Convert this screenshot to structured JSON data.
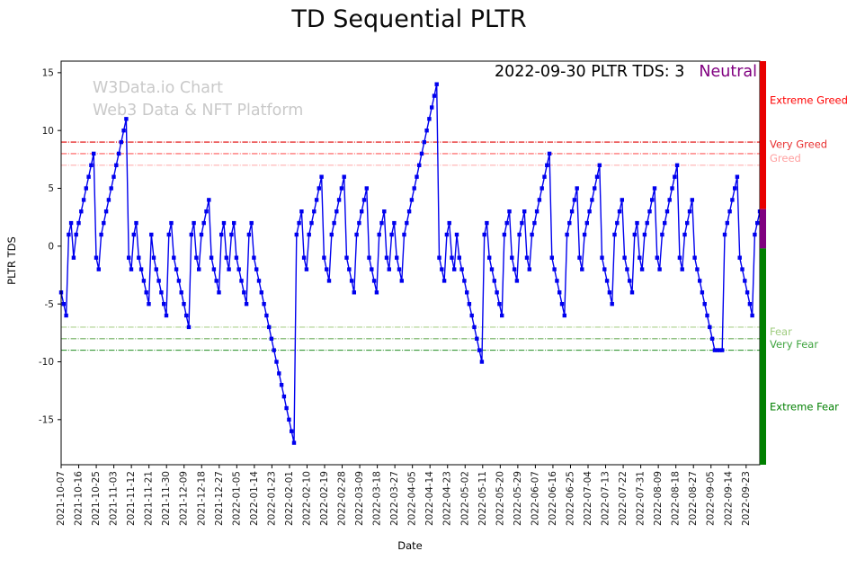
{
  "page": {
    "title": "TD Sequential PLTR"
  },
  "watermark": {
    "line1": "W3Data.io Chart",
    "line2": "Web3 Data & NFT Platform"
  },
  "annotation": {
    "text": "2022-09-30 PLTR TDS: 3",
    "sentiment": "Neutral",
    "sentiment_color": "#800080"
  },
  "chart_data": {
    "type": "line",
    "title": "TD Sequential PLTR",
    "xlabel": "Date",
    "ylabel": "PLTR TDS",
    "ylim": [
      -18.9,
      16.0
    ],
    "yticks": [
      -15,
      -10,
      -5,
      0,
      5,
      10,
      15
    ],
    "grid": false,
    "x_span_days": 358,
    "x_tick_step_days": 9,
    "x_tick_labels": [
      "2021-10-07",
      "2021-10-16",
      "2021-10-25",
      "2021-11-03",
      "2021-11-12",
      "2021-11-21",
      "2021-11-30",
      "2021-12-09",
      "2021-12-18",
      "2021-12-27",
      "2022-01-05",
      "2022-01-14",
      "2022-01-23",
      "2022-02-01",
      "2022-02-10",
      "2022-02-19",
      "2022-02-28",
      "2022-03-09",
      "2022-03-18",
      "2022-03-27",
      "2022-04-05",
      "2022-04-14",
      "2022-04-23",
      "2022-05-02",
      "2022-05-11",
      "2022-05-20",
      "2022-05-29",
      "2022-06-07",
      "2022-06-16",
      "2022-06-25",
      "2022-07-04",
      "2022-07-13",
      "2022-07-22",
      "2022-07-31",
      "2022-08-09",
      "2022-08-18",
      "2022-08-27",
      "2022-09-05",
      "2022-09-14",
      "2022-09-23"
    ],
    "series": [
      {
        "name": "PLTR TDS",
        "color": "#0000ee",
        "marker": "square",
        "values": [
          -4,
          -5,
          -6,
          1,
          2,
          -1,
          1,
          2,
          3,
          4,
          5,
          6,
          7,
          8,
          -1,
          -2,
          1,
          2,
          3,
          4,
          5,
          6,
          7,
          8,
          9,
          10,
          11,
          -1,
          -2,
          1,
          2,
          -1,
          -2,
          -3,
          -4,
          -5,
          1,
          -1,
          -2,
          -3,
          -4,
          -5,
          -6,
          1,
          2,
          -1,
          -2,
          -3,
          -4,
          -5,
          -6,
          -7,
          1,
          2,
          -1,
          -2,
          1,
          2,
          3,
          4,
          -1,
          -2,
          -3,
          -4,
          1,
          2,
          -1,
          -2,
          1,
          2,
          -1,
          -2,
          -3,
          -4,
          -5,
          1,
          2,
          -1,
          -2,
          -3,
          -4,
          -5,
          -6,
          -7,
          -8,
          -9,
          -10,
          -11,
          -12,
          -13,
          -14,
          -15,
          -16,
          -17,
          1,
          2,
          3,
          -1,
          -2,
          1,
          2,
          3,
          4,
          5,
          6,
          -1,
          -2,
          -3,
          1,
          2,
          3,
          4,
          5,
          6,
          -1,
          -2,
          -3,
          -4,
          1,
          2,
          3,
          4,
          5,
          -1,
          -2,
          -3,
          -4,
          1,
          2,
          3,
          -1,
          -2,
          1,
          2,
          -1,
          -2,
          -3,
          1,
          2,
          3,
          4,
          5,
          6,
          7,
          8,
          9,
          10,
          11,
          12,
          13,
          14,
          -1,
          -2,
          -3,
          1,
          2,
          -1,
          -2,
          1,
          -1,
          -2,
          -3,
          -4,
          -5,
          -6,
          -7,
          -8,
          -9,
          -10,
          1,
          2,
          -1,
          -2,
          -3,
          -4,
          -5,
          -6,
          1,
          2,
          3,
          -1,
          -2,
          -3,
          1,
          2,
          3,
          -1,
          -2,
          1,
          2,
          3,
          4,
          5,
          6,
          7,
          8,
          -1,
          -2,
          -3,
          -4,
          -5,
          -6,
          1,
          2,
          3,
          4,
          5,
          -1,
          -2,
          1,
          2,
          3,
          4,
          5,
          6,
          7,
          -1,
          -2,
          -3,
          -4,
          -5,
          1,
          2,
          3,
          4,
          -1,
          -2,
          -3,
          -4,
          1,
          2,
          -1,
          -2,
          1,
          2,
          3,
          4,
          5,
          -1,
          -2,
          1,
          2,
          3,
          4,
          5,
          6,
          7,
          -1,
          -2,
          1,
          2,
          3,
          4,
          -1,
          -2,
          -3,
          -4,
          -5,
          -6,
          -7,
          -8,
          -9,
          -9,
          -9,
          -9,
          1,
          2,
          3,
          4,
          5,
          6,
          -1,
          -2,
          -3,
          -4,
          -5,
          -6,
          1,
          2,
          3
        ]
      }
    ],
    "thresholds": [
      {
        "value": 9,
        "color": "#e00000",
        "style": "dashdot"
      },
      {
        "value": 8,
        "color": "#ff5a5a",
        "style": "dashdot"
      },
      {
        "value": 7,
        "color": "#ffb0b0",
        "style": "dashdot"
      },
      {
        "value": -7,
        "color": "#aed08e",
        "style": "dashdot"
      },
      {
        "value": -8,
        "color": "#6fae5c",
        "style": "dashdot"
      },
      {
        "value": -9,
        "color": "#1e8c1e",
        "style": "dashdot"
      }
    ],
    "zone_labels": [
      {
        "label": "Extreme Greed",
        "value": 12.6,
        "color": "#ff0000"
      },
      {
        "label": "Very Greed",
        "value": 8.8,
        "color": "#e83030"
      },
      {
        "label": "Greed",
        "value": 7.6,
        "color": "#ffa0a0"
      },
      {
        "label": "Fear",
        "value": -7.4,
        "color": "#9fcc7f"
      },
      {
        "label": "Very Fear",
        "value": -8.5,
        "color": "#3fa43f"
      },
      {
        "label": "Extreme Fear",
        "value": -13.9,
        "color": "#007f00"
      }
    ],
    "sentiment_bar": [
      {
        "from": 16.0,
        "to": 3.2,
        "color": "#e80000"
      },
      {
        "from": 3.2,
        "to": -0.2,
        "color": "#800080"
      },
      {
        "from": -0.2,
        "to": -18.9,
        "color": "#008000"
      }
    ]
  }
}
